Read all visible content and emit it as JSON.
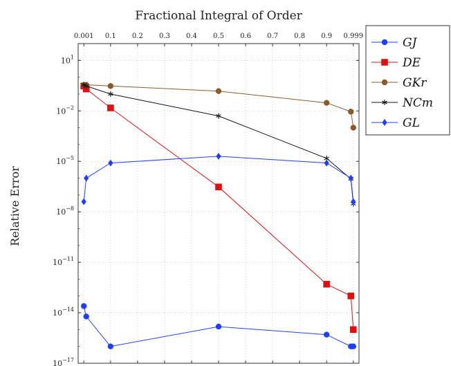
{
  "chart_data": {
    "type": "line",
    "title": "Fractional Integral of Order",
    "xlabel": "",
    "ylabel": "Relative Error",
    "y_scale": "log",
    "ylim_exponents": [
      -17,
      2
    ],
    "xlim": [
      -0.02,
      1.02
    ],
    "x_ticks": [
      {
        "value": 0.001,
        "label": "0.001"
      },
      {
        "value": 0.1,
        "label": "0.1"
      },
      {
        "value": 0.2,
        "label": "0.2"
      },
      {
        "value": 0.3,
        "label": "0.3"
      },
      {
        "value": 0.4,
        "label": "0.4"
      },
      {
        "value": 0.5,
        "label": "0.5"
      },
      {
        "value": 0.6,
        "label": "0.6"
      },
      {
        "value": 0.7,
        "label": "0.7"
      },
      {
        "value": 0.8,
        "label": "0.8"
      },
      {
        "value": 0.9,
        "label": "0.9"
      },
      {
        "value": 0.999,
        "label": "0.999"
      }
    ],
    "x_axis_position": "top",
    "y_ticks": [
      {
        "exp": 1,
        "base": "10",
        "sup": "1"
      },
      {
        "exp": -2,
        "base": "10",
        "sup": "−2"
      },
      {
        "exp": -5,
        "base": "10",
        "sup": "−5"
      },
      {
        "exp": -8,
        "base": "10",
        "sup": "−8"
      },
      {
        "exp": -11,
        "base": "10",
        "sup": "−11"
      },
      {
        "exp": -14,
        "base": "10",
        "sup": "−14"
      },
      {
        "exp": -17,
        "base": "10",
        "sup": "−17"
      }
    ],
    "grid": true,
    "legend_position": "outside-right-top",
    "series": [
      {
        "name": "GJ",
        "color": "#1f3fff",
        "marker": "circle",
        "x": [
          0.001,
          0.01,
          0.1,
          0.5,
          0.9,
          0.99,
          0.999
        ],
        "y": [
          2.5e-14,
          6e-15,
          1e-16,
          1.5e-15,
          5e-16,
          1e-16,
          1e-16
        ]
      },
      {
        "name": "DE",
        "color": "#e01010",
        "marker": "square",
        "x": [
          0.001,
          0.01,
          0.1,
          0.5,
          0.9,
          0.99,
          0.999
        ],
        "y": [
          0.3,
          0.2,
          0.015,
          3e-07,
          5e-13,
          1e-13,
          1e-15
        ]
      },
      {
        "name": "GKr",
        "color": "#8b5a2b",
        "marker": "circle",
        "x": [
          0.001,
          0.01,
          0.1,
          0.5,
          0.9,
          0.99,
          0.999
        ],
        "y": [
          0.35,
          0.35,
          0.3,
          0.15,
          0.03,
          0.009,
          0.001
        ]
      },
      {
        "name": "NCm",
        "color": "#111111",
        "marker": "star",
        "x": [
          0.001,
          0.01,
          0.1,
          0.5,
          0.9,
          0.99,
          0.999
        ],
        "y": [
          0.35,
          0.3,
          0.1,
          0.005,
          1.5e-05,
          9e-07,
          3e-08
        ]
      },
      {
        "name": "GL",
        "color": "#1f3fff",
        "marker": "diamond",
        "x": [
          0.001,
          0.01,
          0.1,
          0.5,
          0.9,
          0.99,
          0.999
        ],
        "y": [
          4e-08,
          1e-06,
          8e-06,
          2e-05,
          8e-06,
          1e-06,
          4e-08
        ]
      }
    ]
  }
}
